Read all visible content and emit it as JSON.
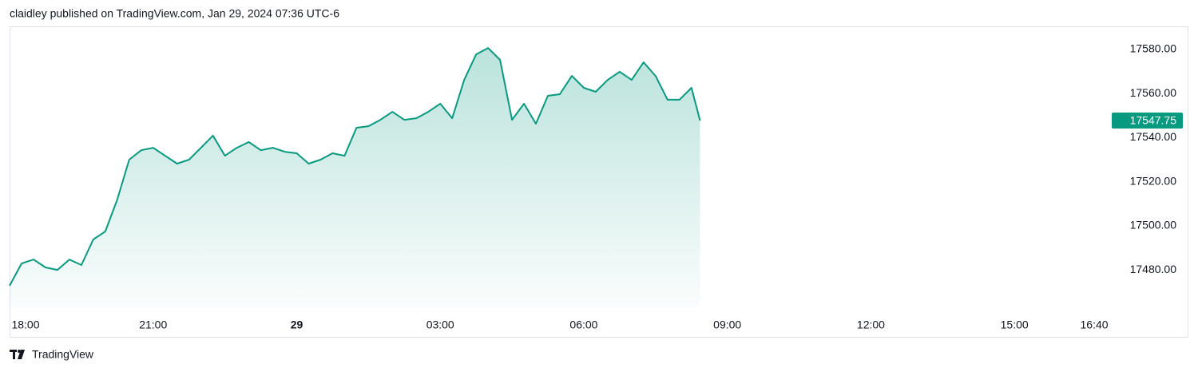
{
  "attribution": "claidley published on TradingView.com, Jan 29, 2024 07:36 UTC-6",
  "brand": "TradingView",
  "chart_data": {
    "type": "area",
    "color": "#089981",
    "x": [
      0,
      0.25,
      0.5,
      0.75,
      1,
      1.25,
      1.5,
      1.75,
      2,
      2.25,
      2.5,
      2.75,
      3,
      3.25,
      3.5,
      3.75,
      4,
      4.25,
      4.5,
      4.75,
      5,
      5.25,
      5.5,
      5.75,
      6,
      6.25,
      6.5,
      6.75,
      7,
      7.25,
      7.5,
      7.75,
      8,
      8.25,
      8.5,
      8.75,
      9,
      9.25,
      9.5,
      9.75,
      10,
      10.25,
      10.5,
      10.75,
      11,
      11.25,
      11.5,
      11.75,
      12,
      12.25,
      12.5,
      12.75,
      13,
      13.25,
      13.5,
      13.75,
      14,
      14.25,
      14.43
    ],
    "values": [
      17472.8,
      17482.9,
      17484.7,
      17481.1,
      17480.0,
      17484.7,
      17482.2,
      17493.8,
      17497.4,
      17511.9,
      17530.0,
      17534.3,
      17535.4,
      17531.8,
      17528.2,
      17530.0,
      17535.4,
      17540.9,
      17531.8,
      17535.4,
      17538.0,
      17534.3,
      17535.4,
      17533.6,
      17532.9,
      17528.2,
      17530.0,
      17532.9,
      17531.8,
      17544.5,
      17545.2,
      17548.1,
      17551.7,
      17548.1,
      17548.8,
      17551.7,
      17555.4,
      17548.8,
      17566.2,
      17577.8,
      17580.7,
      17575.3,
      17548.1,
      17555.4,
      17546.3,
      17559.0,
      17559.7,
      17568.0,
      17562.6,
      17560.8,
      17566.2,
      17569.9,
      17566.2,
      17574.2,
      17568.0,
      17557.2,
      17557.2,
      17562.6,
      17547.75
    ],
    "xlim": [
      0,
      22.95
    ],
    "xticks": [
      {
        "value": 0,
        "label": "18:00"
      },
      {
        "value": 3,
        "label": "21:00"
      },
      {
        "value": 6,
        "label": "29"
      },
      {
        "value": 9,
        "label": "03:00"
      },
      {
        "value": 12,
        "label": "06:00"
      },
      {
        "value": 15,
        "label": "09:00"
      },
      {
        "value": 18,
        "label": "12:00"
      },
      {
        "value": 21,
        "label": "15:00"
      },
      {
        "value": 22.6667,
        "label": "16:40"
      }
    ],
    "ylim": [
      17463,
      17590.5
    ],
    "yticks": [
      {
        "value": 17480,
        "label": "17480.00"
      },
      {
        "value": 17500,
        "label": "17500.00"
      },
      {
        "value": 17520,
        "label": "17520.00"
      },
      {
        "value": 17540,
        "label": "17540.00"
      },
      {
        "value": 17560,
        "label": "17560.00"
      },
      {
        "value": 17580,
        "label": "17580.00"
      }
    ]
  }
}
